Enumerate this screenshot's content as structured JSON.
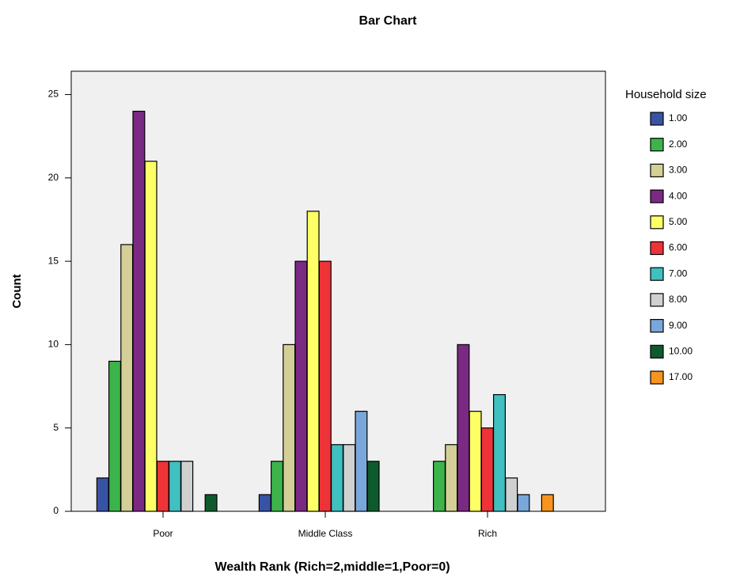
{
  "chart_data": {
    "type": "bar",
    "title": "Bar Chart",
    "x_label": "Wealth Rank (Rich=2,middle=1,Poor=0)",
    "y_label": "Count",
    "legend_title": "Household size",
    "categories": [
      "Poor",
      "Middle Class",
      "Rich"
    ],
    "series": [
      {
        "name": "1.00",
        "color": "#3953a4",
        "values": [
          2,
          1,
          null
        ]
      },
      {
        "name": "2.00",
        "color": "#3cb44a",
        "values": [
          9,
          3,
          3
        ]
      },
      {
        "name": "3.00",
        "color": "#d4cf96",
        "values": [
          16,
          10,
          4
        ]
      },
      {
        "name": "4.00",
        "color": "#7b2a84",
        "values": [
          24,
          15,
          10
        ]
      },
      {
        "name": "5.00",
        "color": "#ffff66",
        "values": [
          21,
          18,
          6
        ]
      },
      {
        "name": "6.00",
        "color": "#ee3338",
        "values": [
          3,
          15,
          5
        ]
      },
      {
        "name": "7.00",
        "color": "#40c0c0",
        "values": [
          3,
          4,
          7
        ]
      },
      {
        "name": "8.00",
        "color": "#d0d0d0",
        "values": [
          3,
          4,
          2
        ]
      },
      {
        "name": "9.00",
        "color": "#79a7d9",
        "values": [
          null,
          6,
          1
        ]
      },
      {
        "name": "10.00",
        "color": "#0f5a2d",
        "values": [
          1,
          3,
          null
        ]
      },
      {
        "name": "17.00",
        "color": "#f7941d",
        "values": [
          null,
          null,
          1
        ]
      }
    ],
    "ylim": [
      0,
      26.4
    ],
    "yticks": [
      0,
      5,
      10,
      15,
      20,
      25
    ],
    "legend": "right"
  }
}
